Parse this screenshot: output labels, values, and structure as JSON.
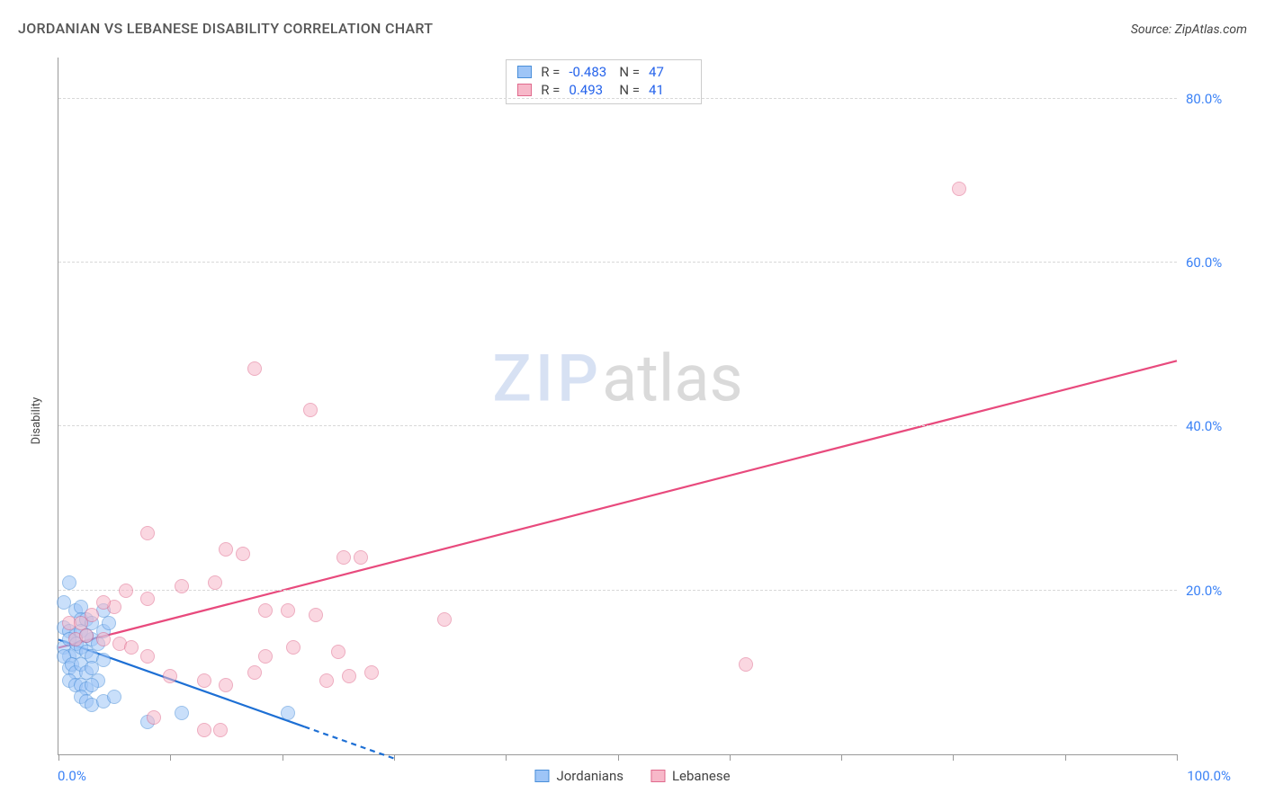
{
  "title": "JORDANIAN VS LEBANESE DISABILITY CORRELATION CHART",
  "source": "Source: ZipAtlas.com",
  "ylabel": "Disability",
  "watermark_part1": "ZIP",
  "watermark_part2": "atlas",
  "chart": {
    "type": "scatter",
    "background_color": "#ffffff",
    "grid_color": "#d8d8d8",
    "axis_color": "#999999",
    "xlim": [
      0,
      100
    ],
    "ylim": [
      0,
      85
    ],
    "x_tick_positions": [
      0,
      10,
      20,
      30,
      40,
      50,
      60,
      70,
      80,
      90,
      100
    ],
    "y_gridlines": [
      20,
      40,
      60,
      80
    ],
    "y_tick_labels": [
      "20.0%",
      "40.0%",
      "60.0%",
      "80.0%"
    ],
    "x_min_label": "0.0%",
    "x_max_label": "100.0%",
    "marker_radius": 8,
    "marker_opacity": 0.55,
    "series": [
      {
        "name": "Jordanians",
        "fill": "#9ec5f7",
        "stroke": "#4a8fd9",
        "trend_stroke": "#1d6fd4",
        "r_value": "-0.483",
        "n_value": "47",
        "trendline": {
          "x1": 0,
          "y1": 14.0,
          "x2": 30,
          "y2": -0.5,
          "dash_after_x": 22
        },
        "points": [
          {
            "x": 1.0,
            "y": 21.0
          },
          {
            "x": 0.5,
            "y": 18.5
          },
          {
            "x": 1.5,
            "y": 17.5
          },
          {
            "x": 2.0,
            "y": 18.0
          },
          {
            "x": 2.0,
            "y": 16.5
          },
          {
            "x": 0.5,
            "y": 15.5
          },
          {
            "x": 0.5,
            "y": 13.0
          },
          {
            "x": 1.0,
            "y": 15.0
          },
          {
            "x": 1.5,
            "y": 14.5
          },
          {
            "x": 2.0,
            "y": 15.0
          },
          {
            "x": 2.5,
            "y": 16.5
          },
          {
            "x": 3.0,
            "y": 16.0
          },
          {
            "x": 3.0,
            "y": 14.0
          },
          {
            "x": 4.0,
            "y": 17.5
          },
          {
            "x": 1.0,
            "y": 12.0
          },
          {
            "x": 1.5,
            "y": 12.5
          },
          {
            "x": 0.5,
            "y": 12.0
          },
          {
            "x": 1.0,
            "y": 14.0
          },
          {
            "x": 1.6,
            "y": 13.5
          },
          {
            "x": 2.0,
            "y": 13.0
          },
          {
            "x": 2.5,
            "y": 14.5
          },
          {
            "x": 2.5,
            "y": 12.5
          },
          {
            "x": 3.0,
            "y": 12.0
          },
          {
            "x": 3.5,
            "y": 13.5
          },
          {
            "x": 4.0,
            "y": 15.0
          },
          {
            "x": 4.5,
            "y": 16.0
          },
          {
            "x": 1.0,
            "y": 10.5
          },
          {
            "x": 1.2,
            "y": 11.0
          },
          {
            "x": 1.5,
            "y": 10.0
          },
          {
            "x": 2.0,
            "y": 11.0
          },
          {
            "x": 2.5,
            "y": 10.0
          },
          {
            "x": 3.0,
            "y": 10.5
          },
          {
            "x": 3.5,
            "y": 9.0
          },
          {
            "x": 4.0,
            "y": 11.5
          },
          {
            "x": 1.0,
            "y": 9.0
          },
          {
            "x": 1.5,
            "y": 8.5
          },
          {
            "x": 2.0,
            "y": 8.5
          },
          {
            "x": 2.5,
            "y": 8.0
          },
          {
            "x": 3.0,
            "y": 8.5
          },
          {
            "x": 2.0,
            "y": 7.0
          },
          {
            "x": 2.5,
            "y": 6.5
          },
          {
            "x": 3.0,
            "y": 6.0
          },
          {
            "x": 4.0,
            "y": 6.5
          },
          {
            "x": 5.0,
            "y": 7.0
          },
          {
            "x": 8.0,
            "y": 4.0
          },
          {
            "x": 11.0,
            "y": 5.0
          },
          {
            "x": 20.5,
            "y": 5.0
          }
        ]
      },
      {
        "name": "Lebanese",
        "fill": "#f7b8c9",
        "stroke": "#e06a8d",
        "trend_stroke": "#e84a7d",
        "r_value": "0.493",
        "n_value": "41",
        "trendline": {
          "x1": 0,
          "y1": 13.0,
          "x2": 100,
          "y2": 48.0
        },
        "points": [
          {
            "x": 80.5,
            "y": 69.0
          },
          {
            "x": 17.5,
            "y": 47.0
          },
          {
            "x": 22.5,
            "y": 42.0
          },
          {
            "x": 8.0,
            "y": 27.0
          },
          {
            "x": 15.0,
            "y": 25.0
          },
          {
            "x": 16.5,
            "y": 24.5
          },
          {
            "x": 25.5,
            "y": 24.0
          },
          {
            "x": 27.0,
            "y": 24.0
          },
          {
            "x": 14.0,
            "y": 21.0
          },
          {
            "x": 11.0,
            "y": 20.5
          },
          {
            "x": 6.0,
            "y": 20.0
          },
          {
            "x": 8.0,
            "y": 19.0
          },
          {
            "x": 5.0,
            "y": 18.0
          },
          {
            "x": 3.0,
            "y": 17.0
          },
          {
            "x": 4.0,
            "y": 18.5
          },
          {
            "x": 1.0,
            "y": 16.0
          },
          {
            "x": 2.0,
            "y": 16.0
          },
          {
            "x": 18.5,
            "y": 17.5
          },
          {
            "x": 20.5,
            "y": 17.5
          },
          {
            "x": 23.0,
            "y": 17.0
          },
          {
            "x": 34.5,
            "y": 16.5
          },
          {
            "x": 61.5,
            "y": 11.0
          },
          {
            "x": 1.5,
            "y": 14.0
          },
          {
            "x": 2.5,
            "y": 14.5
          },
          {
            "x": 4.0,
            "y": 14.0
          },
          {
            "x": 5.5,
            "y": 13.5
          },
          {
            "x": 6.5,
            "y": 13.0
          },
          {
            "x": 8.0,
            "y": 12.0
          },
          {
            "x": 18.5,
            "y": 12.0
          },
          {
            "x": 21.0,
            "y": 13.0
          },
          {
            "x": 25.0,
            "y": 12.5
          },
          {
            "x": 28.0,
            "y": 10.0
          },
          {
            "x": 10.0,
            "y": 9.5
          },
          {
            "x": 13.0,
            "y": 9.0
          },
          {
            "x": 15.0,
            "y": 8.5
          },
          {
            "x": 17.5,
            "y": 10.0
          },
          {
            "x": 24.0,
            "y": 9.0
          },
          {
            "x": 26.0,
            "y": 9.5
          },
          {
            "x": 8.5,
            "y": 4.5
          },
          {
            "x": 13.0,
            "y": 3.0
          },
          {
            "x": 14.5,
            "y": 3.0
          }
        ]
      }
    ]
  },
  "legend": {
    "series1_label": "Jordanians",
    "series2_label": "Lebanese"
  },
  "stats_labels": {
    "r": "R =",
    "n": "N ="
  }
}
